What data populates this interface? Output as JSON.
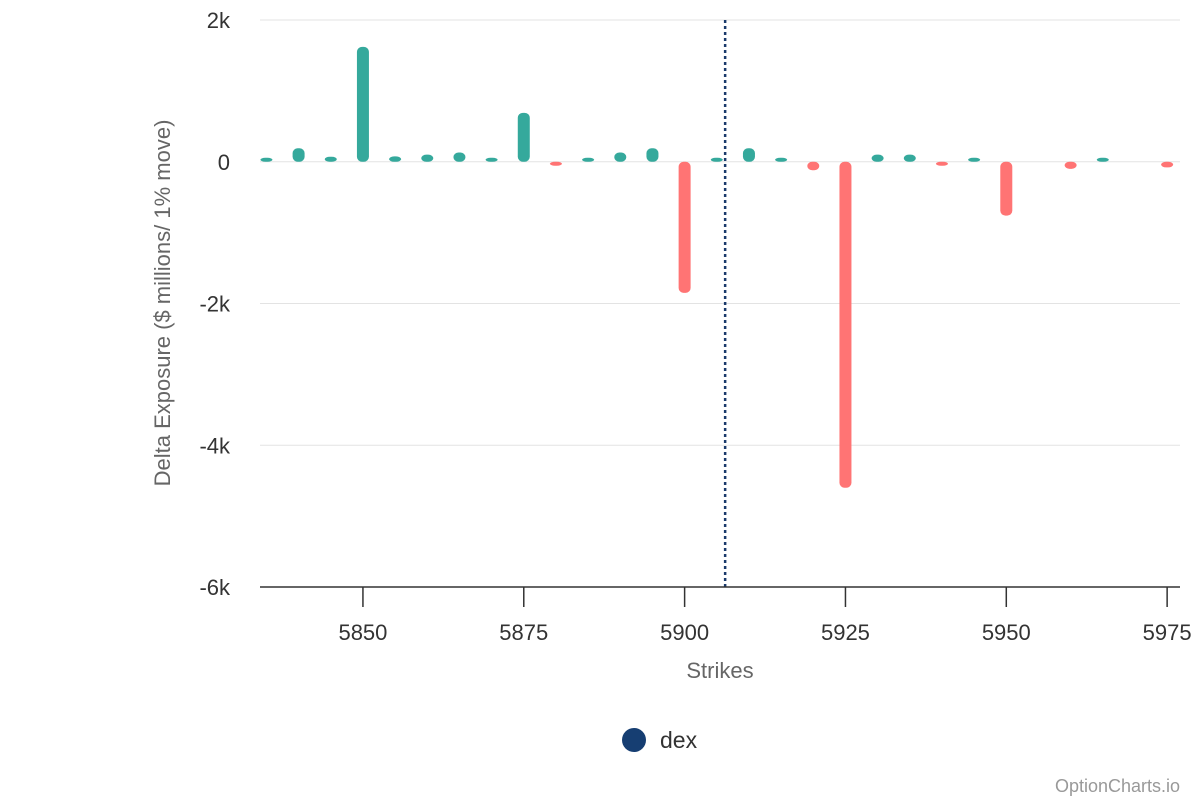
{
  "chart_data": {
    "type": "bar",
    "title": "",
    "xlabel": "Strikes",
    "ylabel": "Delta Exposure ($ millions/ 1% move)",
    "ylim": [
      -6000,
      2000
    ],
    "xlim": [
      5834,
      5977
    ],
    "y_ticks": [
      {
        "value": 2000,
        "label": "2k"
      },
      {
        "value": 0,
        "label": "0"
      },
      {
        "value": -2000,
        "label": "-2k"
      },
      {
        "value": -4000,
        "label": "-4k"
      },
      {
        "value": -6000,
        "label": "-6k"
      }
    ],
    "x_ticks": [
      {
        "value": 5850,
        "label": "5850"
      },
      {
        "value": 5875,
        "label": "5875"
      },
      {
        "value": 5900,
        "label": "5900"
      },
      {
        "value": 5925,
        "label": "5925"
      },
      {
        "value": 5950,
        "label": "5950"
      },
      {
        "value": 5975,
        "label": "5975"
      }
    ],
    "grid": true,
    "reference_line": {
      "x": 5906.3,
      "style": "dotted",
      "color": "#1a3a6b"
    },
    "positive_color": "#35a99c",
    "negative_color": "#ff7474",
    "series": [
      {
        "name": "dex",
        "points": [
          {
            "x": 5835,
            "y": 40
          },
          {
            "x": 5840,
            "y": 190
          },
          {
            "x": 5845,
            "y": 70
          },
          {
            "x": 5850,
            "y": 1620
          },
          {
            "x": 5855,
            "y": 75
          },
          {
            "x": 5860,
            "y": 100
          },
          {
            "x": 5865,
            "y": 130
          },
          {
            "x": 5870,
            "y": 40
          },
          {
            "x": 5875,
            "y": 690
          },
          {
            "x": 5880,
            "y": -40
          },
          {
            "x": 5885,
            "y": 20
          },
          {
            "x": 5890,
            "y": 130
          },
          {
            "x": 5895,
            "y": 190
          },
          {
            "x": 5900,
            "y": -1850
          },
          {
            "x": 5905,
            "y": 5
          },
          {
            "x": 5910,
            "y": 190
          },
          {
            "x": 5915,
            "y": 50
          },
          {
            "x": 5920,
            "y": -120
          },
          {
            "x": 5925,
            "y": -4600
          },
          {
            "x": 5930,
            "y": 100
          },
          {
            "x": 5935,
            "y": 100
          },
          {
            "x": 5940,
            "y": -30
          },
          {
            "x": 5945,
            "y": 5
          },
          {
            "x": 5950,
            "y": -760
          },
          {
            "x": 5960,
            "y": -100
          },
          {
            "x": 5965,
            "y": 5
          },
          {
            "x": 5975,
            "y": -80
          }
        ]
      }
    ]
  },
  "legend": {
    "label": "dex",
    "marker_color": "#163e72",
    "position": "bottom-center"
  },
  "watermark": "OptionCharts.io"
}
